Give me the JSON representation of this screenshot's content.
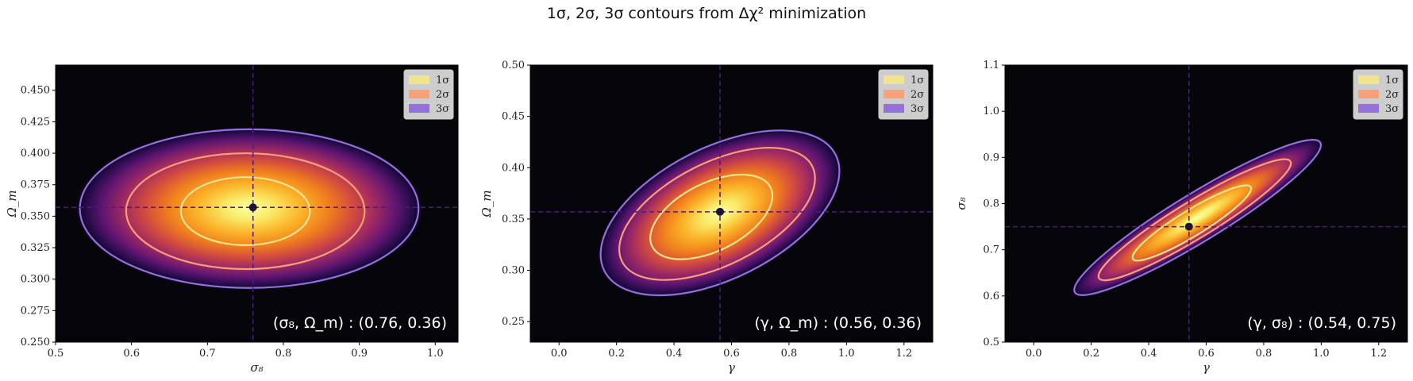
{
  "figure": {
    "title": "1σ, 2σ, 3σ contours from Δχ² minimization"
  },
  "chart_data": [
    {
      "type": "heatmap",
      "xlabel": "σ₈",
      "ylabel": "Ω_m",
      "xlim": [
        0.5,
        1.03
      ],
      "ylim": [
        0.25,
        0.47
      ],
      "xticks": [
        "0.5",
        "0.6",
        "0.7",
        "0.8",
        "0.9",
        "1.0"
      ],
      "yticks": [
        "0.250",
        "0.275",
        "0.300",
        "0.325",
        "0.350",
        "0.375",
        "0.400",
        "0.425",
        "0.450"
      ],
      "best_fit": {
        "x": 0.76,
        "y": 0.357
      },
      "contours": [
        {
          "level": "1σ",
          "center": [
            0.75,
            0.354
          ],
          "semi_axes": [
            0.085,
            0.027
          ],
          "tilt": 0
        },
        {
          "level": "2σ",
          "center": [
            0.75,
            0.354
          ],
          "semi_axes": [
            0.157,
            0.046
          ],
          "tilt": 0
        },
        {
          "level": "3σ",
          "center": [
            0.755,
            0.356
          ],
          "semi_axes": [
            0.223,
            0.063
          ],
          "tilt": 0
        }
      ],
      "annotation": "(σ₈, Ω_m) : (0.76, 0.36)",
      "legend": [
        "1σ",
        "2σ",
        "3σ"
      ],
      "legend_position": "top-right",
      "colormap": "inferno"
    },
    {
      "type": "heatmap",
      "xlabel": "γ",
      "ylabel": "Ω_m",
      "xlim": [
        -0.1,
        1.3
      ],
      "ylim": [
        0.23,
        0.5
      ],
      "xticks": [
        "0.0",
        "0.2",
        "0.4",
        "0.6",
        "0.8",
        "1.0",
        "1.2"
      ],
      "yticks": [
        "0.25",
        "0.30",
        "0.35",
        "0.40",
        "0.45",
        "0.50"
      ],
      "best_fit": {
        "x": 0.56,
        "y": 0.357
      },
      "contours": [
        {
          "level": "1σ",
          "center": [
            0.53,
            0.352
          ],
          "semi_axes": [
            0.23,
            0.033
          ],
          "tilt": 0.14
        },
        {
          "level": "2σ",
          "center": [
            0.55,
            0.355
          ],
          "semi_axes": [
            0.37,
            0.05
          ],
          "tilt": 0.14
        },
        {
          "level": "3σ",
          "center": [
            0.56,
            0.356
          ],
          "semi_axes": [
            0.45,
            0.064
          ],
          "tilt": 0.14
        }
      ],
      "annotation": "(γ, Ω_m) : (0.56, 0.36)",
      "legend": [
        "1σ",
        "2σ",
        "3σ"
      ],
      "legend_position": "top-right",
      "colormap": "inferno"
    },
    {
      "type": "heatmap",
      "xlabel": "γ",
      "ylabel": "σ₈",
      "xlim": [
        -0.1,
        1.3
      ],
      "ylim": [
        0.5,
        1.1
      ],
      "xticks": [
        "0.0",
        "0.2",
        "0.4",
        "0.6",
        "0.8",
        "1.0",
        "1.2"
      ],
      "yticks": [
        "0.5",
        "0.6",
        "0.7",
        "0.8",
        "0.9",
        "1.0",
        "1.1"
      ],
      "best_fit": {
        "x": 0.54,
        "y": 0.75
      },
      "contours": [
        {
          "level": "1σ",
          "center": [
            0.55,
            0.758
          ],
          "semi_axes": [
            0.24,
            0.028
          ],
          "tilt": 0.38
        },
        {
          "level": "2σ",
          "center": [
            0.56,
            0.765
          ],
          "semi_axes": [
            0.39,
            0.04
          ],
          "tilt": 0.38
        },
        {
          "level": "3σ",
          "center": [
            0.57,
            0.77
          ],
          "semi_axes": [
            0.5,
            0.052
          ],
          "tilt": 0.38
        }
      ],
      "annotation": "(γ, σ₈) : (0.54, 0.75)",
      "legend": [
        "1σ",
        "2σ",
        "3σ"
      ],
      "legend_position": "top-right",
      "colormap": "inferno"
    }
  ],
  "style": {
    "background": "#060509",
    "contour_colors": {
      "1σ": "#f2e48f",
      "2σ": "#f8a07a",
      "3σ": "#9370db"
    },
    "crosshair_color": "#4b1a86",
    "best_fit_color": "#1c1235"
  }
}
